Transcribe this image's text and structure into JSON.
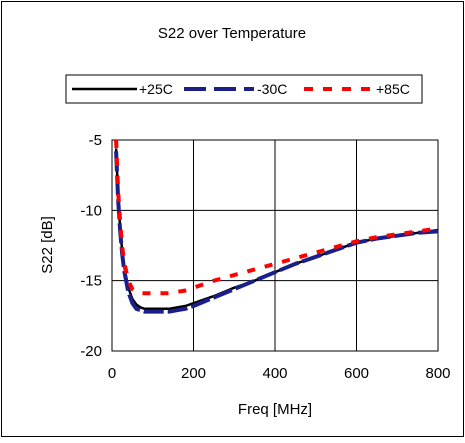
{
  "chart_data": {
    "type": "line",
    "title": "S22 over Temperature",
    "xlabel": "Freq [MHz]",
    "ylabel": "S22 [dB]",
    "xlim": [
      0,
      800
    ],
    "ylim": [
      -20,
      -5
    ],
    "x_ticks": [
      "0",
      "200",
      "400",
      "600",
      "800"
    ],
    "y_ticks": [
      "-5",
      "-10",
      "-15",
      "-20"
    ],
    "grid": true,
    "legend_position": "top",
    "series": [
      {
        "name": "+25C",
        "color": "#000000",
        "style": "solid",
        "x": [
          10,
          15,
          20,
          25,
          30,
          40,
          50,
          60,
          70,
          80,
          100,
          120,
          140,
          160,
          180,
          200,
          250,
          300,
          350,
          400,
          450,
          500,
          550,
          600,
          650,
          700,
          750,
          800
        ],
        "y": [
          -5.6,
          -9.0,
          -11.3,
          -12.9,
          -14.0,
          -15.5,
          -16.3,
          -16.7,
          -16.9,
          -17.0,
          -17.0,
          -17.0,
          -17.0,
          -16.9,
          -16.8,
          -16.6,
          -16.1,
          -15.5,
          -15.0,
          -14.4,
          -13.8,
          -13.3,
          -12.8,
          -12.3,
          -12.0,
          -11.8,
          -11.6,
          -11.4
        ]
      },
      {
        "name": "-30C",
        "color": "#1a1f8a",
        "style": "long-dash",
        "x": [
          10,
          15,
          20,
          25,
          30,
          40,
          50,
          60,
          70,
          80,
          100,
          120,
          140,
          160,
          180,
          200,
          250,
          300,
          350,
          400,
          450,
          500,
          550,
          600,
          650,
          700,
          750,
          800
        ],
        "y": [
          -5.8,
          -9.2,
          -11.5,
          -13.1,
          -14.3,
          -15.8,
          -16.6,
          -17.0,
          -17.1,
          -17.2,
          -17.2,
          -17.2,
          -17.2,
          -17.1,
          -17.0,
          -16.8,
          -16.2,
          -15.6,
          -15.0,
          -14.4,
          -13.8,
          -13.3,
          -12.8,
          -12.3,
          -12.0,
          -11.8,
          -11.6,
          -11.5
        ]
      },
      {
        "name": "+85C",
        "color": "#ff0000",
        "style": "dashed",
        "x": [
          10,
          15,
          20,
          25,
          30,
          40,
          50,
          60,
          70,
          80,
          100,
          120,
          140,
          160,
          180,
          200,
          250,
          300,
          350,
          400,
          450,
          500,
          550,
          600,
          650,
          700,
          750,
          800
        ],
        "y": [
          -5.0,
          -8.6,
          -10.9,
          -12.6,
          -13.7,
          -15.0,
          -15.6,
          -15.8,
          -15.9,
          -15.9,
          -15.9,
          -15.9,
          -15.9,
          -15.8,
          -15.7,
          -15.5,
          -15.0,
          -14.6,
          -14.2,
          -13.8,
          -13.4,
          -13.0,
          -12.6,
          -12.2,
          -11.9,
          -11.7,
          -11.5,
          -11.3
        ]
      }
    ]
  }
}
